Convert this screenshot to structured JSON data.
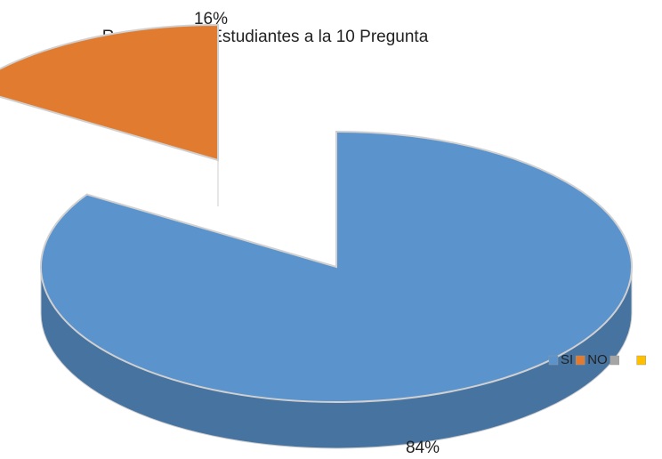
{
  "chart_data": {
    "type": "pie",
    "title": "Respuesta de Estudiantes a la 10 Pregunta",
    "categories": [
      "SI",
      "NO",
      null,
      null
    ],
    "values": [
      84,
      16,
      0,
      0
    ],
    "value_labels": [
      "84%",
      "16%",
      null,
      null
    ],
    "colors": [
      "#5b93cd",
      "#e07b2f",
      "#a5a5a5",
      "#ffc000"
    ],
    "legend": "right"
  }
}
